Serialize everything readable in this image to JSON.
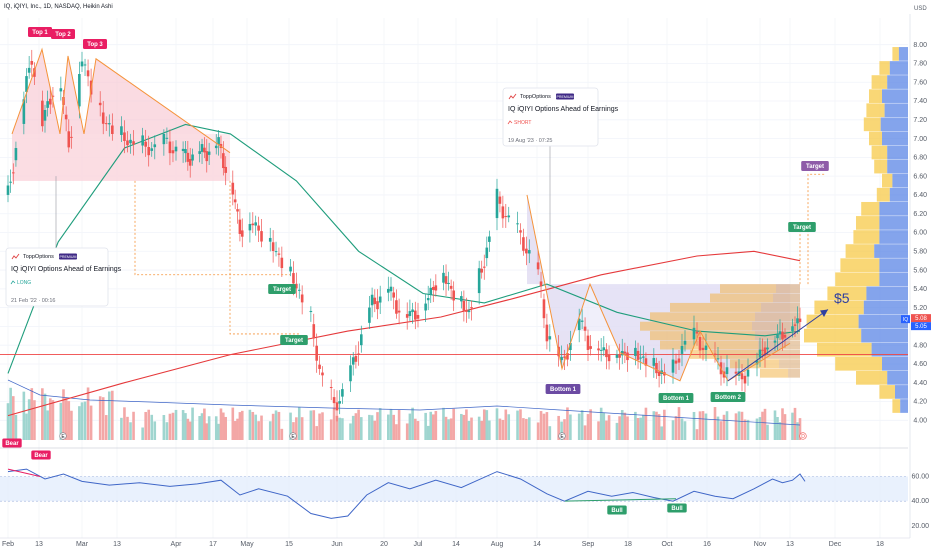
{
  "header": {
    "symbol_line": "IQ, iQIYI, Inc., 1D, NASDAQ, Heikin Ashi",
    "currency": "USD"
  },
  "colors": {
    "bull": "#26a69a",
    "bear": "#ef5350",
    "ma_long": "#e5393b",
    "ma_short": "#1f9d7c",
    "bull_light": "#9fd5cf",
    "bear_light": "#f3a7a6",
    "rsi_line": "#3f66c7",
    "tag_red": "#e91e63",
    "tag_green": "#2e9e6b",
    "tag_purple": "#6c4ba3",
    "vp_blue": "#5b85e6",
    "vp_yellow": "#f7c948",
    "pattern_orange": "#f5933b"
  },
  "chart_data": [
    {
      "type": "candlestick",
      "title": "",
      "x_ticks": [
        "Feb",
        "13",
        "Mar",
        "13",
        "Apr",
        "17",
        "May",
        "15",
        "Jun",
        "20",
        "Jul",
        "14",
        "Aug",
        "14",
        "Sep",
        "18",
        "Oct",
        "16",
        "Nov",
        "13",
        "Dec",
        "18"
      ],
      "y_ticks": [
        4.0,
        4.2,
        4.4,
        4.6,
        4.8,
        5.0,
        5.2,
        5.4,
        5.6,
        5.8,
        6.0,
        6.2,
        6.4,
        6.6,
        6.8,
        7.0,
        7.2,
        7.4,
        7.6,
        7.8,
        8.0
      ],
      "ylim": [
        3.95,
        8.05
      ],
      "series": [
        {
          "name": "IQ",
          "close_path": [
            [
              "Feb 1",
              6.4
            ],
            [
              "Feb 6",
              7.25
            ],
            [
              "Feb 10",
              7.9
            ],
            [
              "Feb 14",
              7.15
            ],
            [
              "Feb 20",
              7.75
            ],
            [
              "Feb 24",
              6.95
            ],
            [
              "Mar 1",
              7.85
            ],
            [
              "Mar 8",
              7.2
            ],
            [
              "Mar 15",
              7.0
            ],
            [
              "Mar 22",
              6.9
            ],
            [
              "Mar 29",
              6.95
            ],
            [
              "Apr 5",
              6.8
            ],
            [
              "Apr 12",
              6.85
            ],
            [
              "Apr 19",
              6.95
            ],
            [
              "Apr 24",
              6.55
            ],
            [
              "Apr 28",
              6.05
            ],
            [
              "May 3",
              6.1
            ],
            [
              "May 8",
              5.95
            ],
            [
              "May 12",
              5.75
            ],
            [
              "May 18",
              5.45
            ],
            [
              "May 23",
              5.05
            ],
            [
              "May 26",
              4.55
            ],
            [
              "May 31",
              4.15
            ],
            [
              "Jun 5",
              4.4
            ],
            [
              "Jun 9",
              4.8
            ],
            [
              "Jun 14",
              5.25
            ],
            [
              "Jun 20",
              5.4
            ],
            [
              "Jun 26",
              5.1
            ],
            [
              "Jul 3",
              5.2
            ],
            [
              "Jul 10",
              5.6
            ],
            [
              "Jul 14",
              5.4
            ],
            [
              "Jul 21",
              5.15
            ],
            [
              "Jul 27",
              5.7
            ],
            [
              "Aug 1",
              6.35
            ],
            [
              "Aug 7",
              6.05
            ],
            [
              "Aug 11",
              5.85
            ],
            [
              "Aug 15",
              5.55
            ],
            [
              "Aug 18",
              4.95
            ],
            [
              "Aug 23",
              4.6
            ],
            [
              "Aug 29",
              5.1
            ],
            [
              "Sep 1",
              4.85
            ],
            [
              "Sep 6",
              4.75
            ],
            [
              "Sep 12",
              4.7
            ],
            [
              "Sep 18",
              4.75
            ],
            [
              "Sep 25",
              4.6
            ],
            [
              "Oct 2",
              4.45
            ],
            [
              "Oct 6",
              4.8
            ],
            [
              "Oct 11",
              4.9
            ],
            [
              "Oct 16",
              4.65
            ],
            [
              "Oct 20",
              4.55
            ],
            [
              "Oct 25",
              4.45
            ],
            [
              "Oct 30",
              4.6
            ],
            [
              "Nov 3",
              4.8
            ],
            [
              "Nov 8",
              4.9
            ],
            [
              "Nov 13",
              5.0
            ],
            [
              "Nov 17",
              5.08
            ]
          ],
          "last_close": 5.08
        },
        {
          "name": "MA long",
          "points": [
            [
              "Feb 1",
              4.05
            ],
            [
              "Mar 15",
              4.4
            ],
            [
              "Apr 24",
              4.7
            ],
            [
              "Jun 5",
              4.95
            ],
            [
              "Jul 10",
              5.1
            ],
            [
              "Aug 7",
              5.3
            ],
            [
              "Sep 6",
              5.55
            ],
            [
              "Oct 11",
              5.75
            ],
            [
              "Oct 30",
              5.8
            ],
            [
              "Nov 17",
              5.7
            ]
          ]
        },
        {
          "name": "MA short",
          "points": [
            [
              "Feb 1",
              4.5
            ],
            [
              "Feb 20",
              5.9
            ],
            [
              "Mar 15",
              6.9
            ],
            [
              "Apr 5",
              7.15
            ],
            [
              "Apr 24",
              7.05
            ],
            [
              "May 18",
              6.55
            ],
            [
              "Jun 9",
              5.8
            ],
            [
              "Jul 3",
              5.35
            ],
            [
              "Jul 27",
              5.25
            ],
            [
              "Aug 18",
              5.45
            ],
            [
              "Sep 12",
              5.15
            ],
            [
              "Oct 11",
              4.95
            ],
            [
              "Nov 3",
              4.9
            ],
            [
              "Nov 17",
              4.95
            ]
          ]
        }
      ]
    },
    {
      "type": "bar",
      "title": "Volume",
      "note": "relative volume bars with moving average, colored by candle direction"
    },
    {
      "type": "line",
      "title": "RSI",
      "y_ticks": [
        20.0,
        40.0,
        60.0
      ],
      "ylim": [
        15,
        75
      ],
      "band": [
        40,
        60
      ],
      "points": [
        [
          "Feb 1",
          64
        ],
        [
          "Feb 8",
          66
        ],
        [
          "Feb 15",
          58
        ],
        [
          "Feb 22",
          62
        ],
        [
          "Mar 1",
          56
        ],
        [
          "Mar 10",
          53
        ],
        [
          "Mar 20",
          55
        ],
        [
          "Mar 30",
          52
        ],
        [
          "Apr 10",
          54
        ],
        [
          "Apr 20",
          57
        ],
        [
          "Apr 28",
          45
        ],
        [
          "May 5",
          50
        ],
        [
          "May 15",
          44
        ],
        [
          "May 23",
          30
        ],
        [
          "May 30",
          26
        ],
        [
          "Jun 5",
          28
        ],
        [
          "Jun 12",
          45
        ],
        [
          "Jun 20",
          55
        ],
        [
          "Jun 28",
          50
        ],
        [
          "Jul 8",
          57
        ],
        [
          "Jul 18",
          51
        ],
        [
          "Aug 1",
          64
        ],
        [
          "Aug 9",
          58
        ],
        [
          "Aug 18",
          46
        ],
        [
          "Aug 24",
          40
        ],
        [
          "Sep 1",
          48
        ],
        [
          "Sep 10",
          44
        ],
        [
          "Sep 18",
          47
        ],
        [
          "Sep 26",
          43
        ],
        [
          "Oct 3",
          40
        ],
        [
          "Oct 10",
          48
        ],
        [
          "Oct 17",
          44
        ],
        [
          "Oct 23",
          42
        ],
        [
          "Oct 30",
          50
        ],
        [
          "Nov 6",
          58
        ],
        [
          "Nov 10",
          55
        ],
        [
          "Nov 14",
          57
        ],
        [
          "Nov 17",
          62
        ],
        [
          "Nov 19",
          56
        ]
      ]
    }
  ],
  "annotations": {
    "tops": [
      "Top 1",
      "Top 2",
      "Top 3"
    ],
    "bottoms": [
      "Bottom 1",
      "Bottom 1",
      "Bottom 2"
    ],
    "targets": [
      "Target",
      "Target",
      "Target",
      "Target"
    ],
    "rsi_tags": [
      "Bear",
      "Bear",
      "Bull",
      "Bull"
    ],
    "price_big": "$5",
    "marker_E": "E",
    "marker_D": "D"
  },
  "cards": [
    {
      "brand": "ToppOptions",
      "badge": "PREMIUM",
      "title": "IQ iQIYI Options Ahead of Earnings",
      "signal": "LONG",
      "date": "21 Feb '22 · 00:16"
    },
    {
      "brand": "ToppOptions",
      "badge": "PREMIUM",
      "title": "IQ iQIYI Options Ahead of Earnings",
      "signal": "SHORT",
      "date": "19 Aug '23 · 07:25"
    }
  ],
  "price_labels": {
    "symbol_tag": "IQ",
    "values": [
      "5.08",
      "5.05"
    ]
  }
}
